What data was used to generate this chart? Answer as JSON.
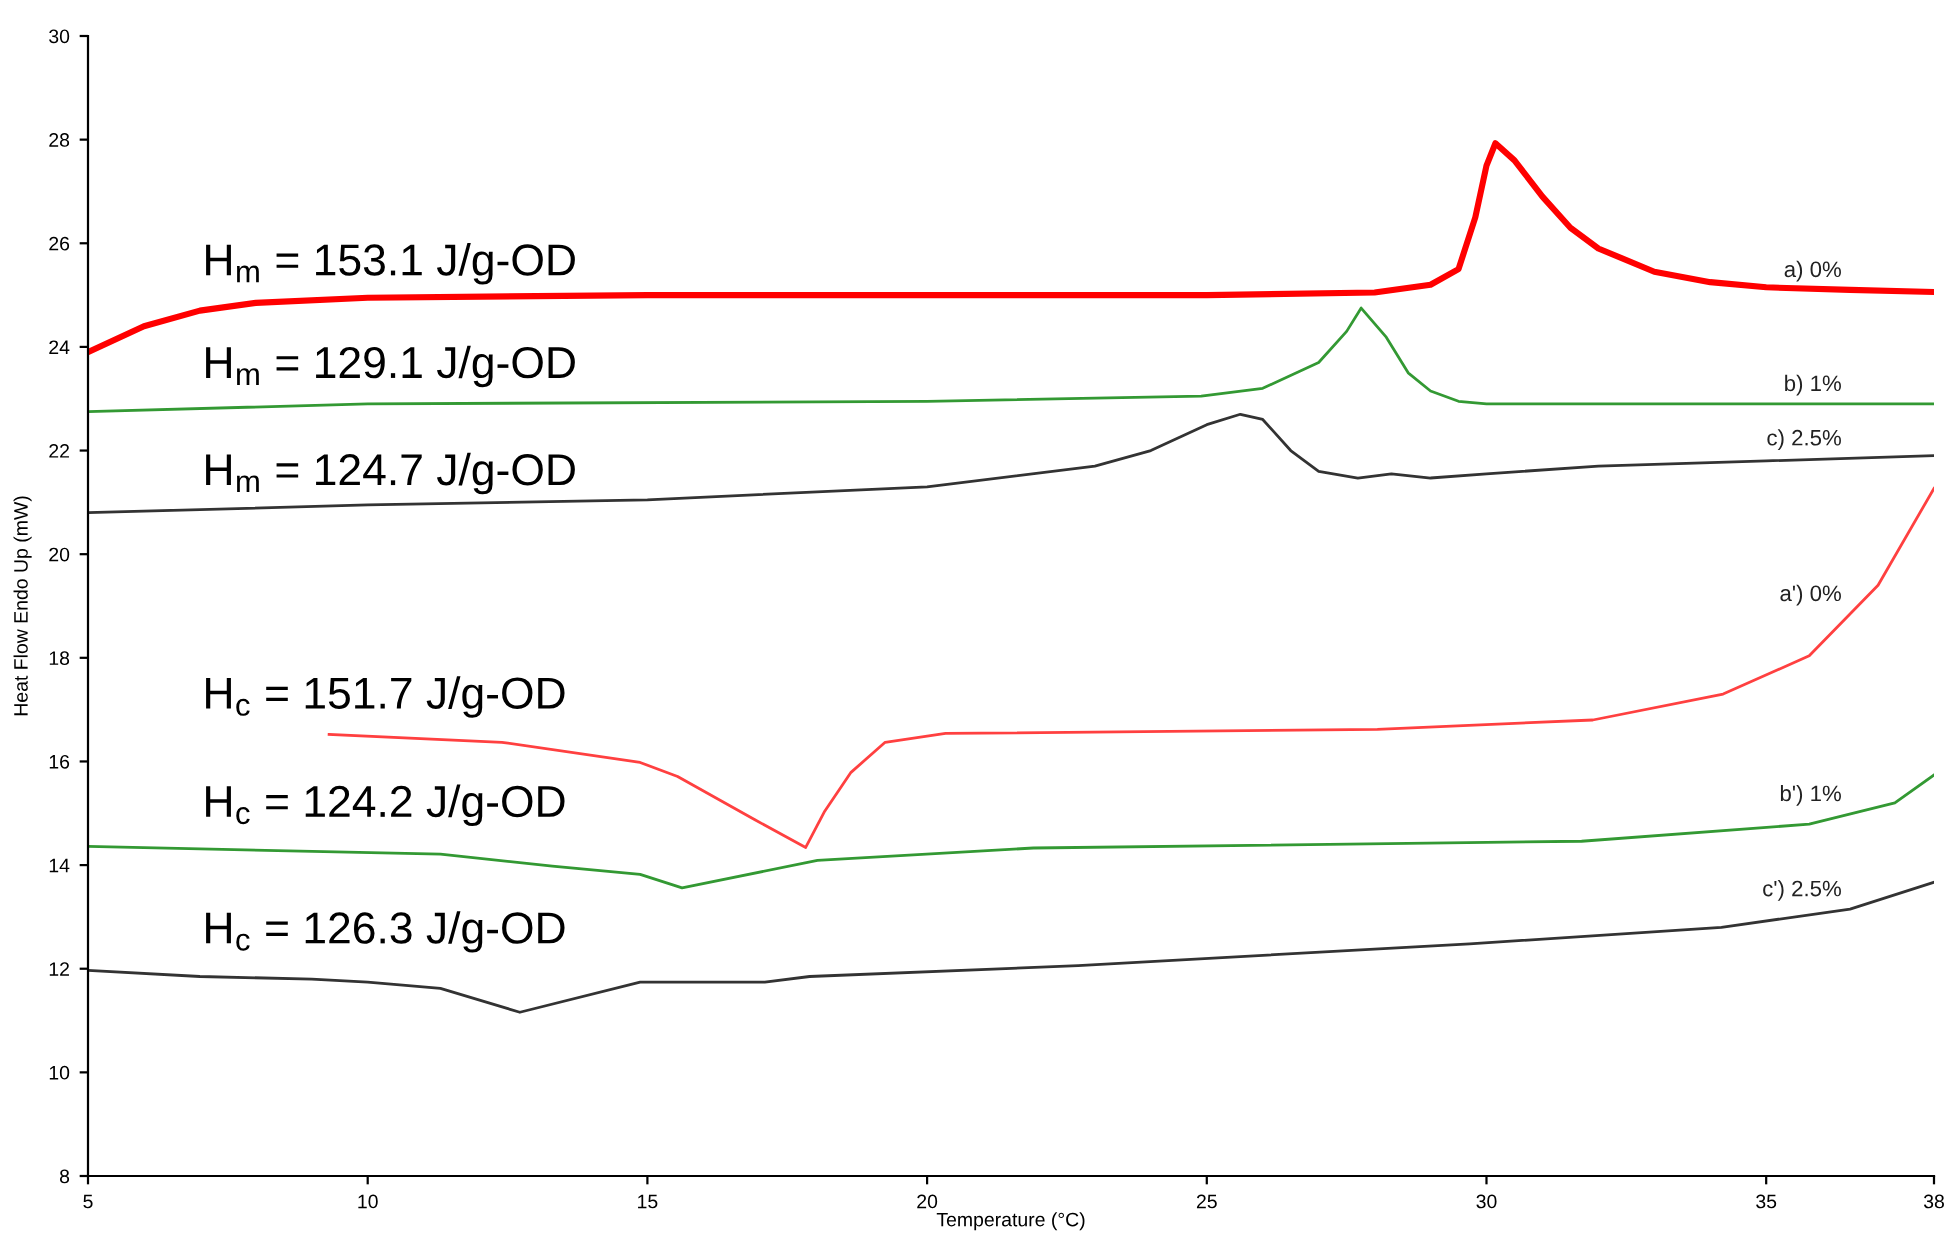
{
  "chart_data": {
    "type": "line",
    "xlabel": "Temperature (°C)",
    "ylabel": "Heat Flow Endo Up (mW)",
    "xlim": [
      5,
      38
    ],
    "xticks": [
      5,
      10,
      15,
      20,
      25,
      30,
      35,
      38
    ],
    "ylim": [
      8,
      30
    ],
    "yticks": [
      8,
      10,
      12,
      14,
      16,
      18,
      20,
      22,
      24,
      26,
      28,
      30
    ],
    "grid": false,
    "legend": false,
    "marker": "none",
    "line_style": "solid",
    "series": [
      {
        "name": "a) 0%",
        "color": "#ff0000",
        "x": [
          5,
          6,
          7,
          8,
          10,
          15,
          25,
          28,
          29,
          29.5,
          29.8,
          30.0,
          30.16,
          30.5,
          31,
          31.5,
          32,
          33,
          34,
          35,
          36.5,
          38
        ],
        "values": [
          23.9,
          24.4,
          24.7,
          24.85,
          24.95,
          25.0,
          25.0,
          25.05,
          25.2,
          25.5,
          26.5,
          27.5,
          27.93,
          27.6,
          26.9,
          26.3,
          25.9,
          25.45,
          25.25,
          25.15,
          25.1,
          25.06
        ]
      },
      {
        "name": "b) 1%",
        "color": "#339933",
        "x": [
          5,
          10,
          20,
          24.9,
          26,
          27,
          27.5,
          27.76,
          28.2,
          28.6,
          29,
          29.5,
          30,
          38
        ],
        "values": [
          22.75,
          22.9,
          22.95,
          23.05,
          23.2,
          23.7,
          24.3,
          24.75,
          24.2,
          23.5,
          23.15,
          22.95,
          22.9,
          22.9
        ]
      },
      {
        "name": "c) 2.5%",
        "color": "#333333",
        "x": [
          5,
          10,
          15,
          20,
          23,
          24,
          25,
          25.6,
          26,
          26.5,
          27,
          27.7,
          28.3,
          29,
          30,
          32,
          35,
          38
        ],
        "values": [
          20.8,
          20.95,
          21.05,
          21.3,
          21.7,
          22.0,
          22.5,
          22.7,
          22.6,
          22.0,
          21.6,
          21.47,
          21.55,
          21.47,
          21.55,
          21.7,
          21.8,
          21.9
        ]
      },
      {
        "name": "a') 0%",
        "color": "#ff4040",
        "x": [
          9.31,
          12.4,
          14.87,
          15.54,
          16.93,
          17.83,
          18.17,
          18.64,
          19.25,
          20.33,
          28.05,
          31.9,
          34.23,
          35.77,
          37.0,
          38
        ],
        "values": [
          16.52,
          16.37,
          15.98,
          15.71,
          14.87,
          14.34,
          15.04,
          15.79,
          16.37,
          16.54,
          16.62,
          16.8,
          17.3,
          18.04,
          19.4,
          21.27
        ]
      },
      {
        "name": "b') 1%",
        "color": "#339933",
        "x": [
          5,
          11.3,
          13.3,
          14.87,
          15.62,
          18.04,
          21.9,
          31.7,
          35.77,
          37.3,
          38
        ],
        "values": [
          14.36,
          14.21,
          13.98,
          13.82,
          13.56,
          14.09,
          14.33,
          14.46,
          14.79,
          15.2,
          15.74
        ]
      },
      {
        "name": "c') 2.5%",
        "color": "#333333",
        "x": [
          5,
          7,
          9,
          10,
          11.3,
          12.72,
          14.87,
          15.2,
          17.1,
          17.9,
          22.7,
          29.7,
          34.2,
          36.5,
          38
        ],
        "values": [
          11.97,
          11.85,
          11.8,
          11.74,
          11.62,
          11.16,
          11.74,
          11.74,
          11.74,
          11.85,
          12.06,
          12.48,
          12.8,
          13.15,
          13.67
        ]
      }
    ],
    "annotations": [
      "H$_{m}$ = 153.1 J/g-OD",
      "H$_{m}$ = 129.1 J/g-OD",
      "H$_{m}$ = 124.7 J/g-OD",
      "H$_{c}$ = 151.7 J/g-OD",
      "H$_{c}$ = 124.2 J/g-OD",
      "H$_{c}$ = 126.3 J/g-OD"
    ]
  }
}
